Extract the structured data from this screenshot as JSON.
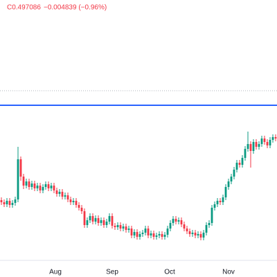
{
  "chart_data": {
    "type": "candlestick",
    "header": {
      "close": "C0.497086",
      "change": "−0.004839 (−0.96%)"
    },
    "up_color": "#089981",
    "down_color": "#f23645",
    "xlim": [
      -0.5,
      99.5
    ],
    "xticks": [
      {
        "value": 19.5,
        "label": "Aug"
      },
      {
        "value": 40,
        "label": "Sep"
      },
      {
        "value": 60.75,
        "label": "Oct"
      },
      {
        "value": 82,
        "label": "Nov"
      }
    ],
    "ylim": [
      0.322,
      0.697
    ],
    "grid": false,
    "lines": [
      {
        "value": 0.545,
        "color": "#2962ff",
        "style": "solid"
      },
      {
        "value": 0.566,
        "color": "#b2b5be",
        "style": "dotted"
      }
    ],
    "open": [
      0.408,
      0.405,
      0.402,
      0.407,
      0.401,
      0.404,
      0.409,
      0.467,
      0.442,
      0.429,
      0.435,
      0.427,
      0.432,
      0.425,
      0.429,
      0.422,
      0.427,
      0.431,
      0.425,
      0.429,
      0.422,
      0.417,
      0.42,
      0.413,
      0.415,
      0.409,
      0.405,
      0.407,
      0.401,
      0.397,
      0.392,
      0.372,
      0.379,
      0.385,
      0.377,
      0.382,
      0.375,
      0.379,
      0.372,
      0.377,
      0.385,
      0.371,
      0.369,
      0.372,
      0.367,
      0.37,
      0.365,
      0.367,
      0.357,
      0.362,
      0.355,
      0.359,
      0.361,
      0.367,
      0.357,
      0.36,
      0.355,
      0.357,
      0.359,
      0.355,
      0.358,
      0.367,
      0.375,
      0.381,
      0.377,
      0.379,
      0.373,
      0.367,
      0.363,
      0.359,
      0.361,
      0.357,
      0.359,
      0.354,
      0.361,
      0.372,
      0.375,
      0.397,
      0.402,
      0.407,
      0.405,
      0.412,
      0.427,
      0.435,
      0.442,
      0.452,
      0.462,
      0.459,
      0.469,
      0.482,
      0.489,
      0.479,
      0.492,
      0.485,
      0.489,
      0.497,
      0.492,
      0.487,
      0.495,
      0.499
    ],
    "high": [
      0.412,
      0.409,
      0.411,
      0.411,
      0.408,
      0.413,
      0.485,
      0.471,
      0.446,
      0.439,
      0.439,
      0.436,
      0.436,
      0.433,
      0.433,
      0.431,
      0.435,
      0.435,
      0.433,
      0.433,
      0.426,
      0.424,
      0.424,
      0.419,
      0.419,
      0.413,
      0.411,
      0.411,
      0.405,
      0.401,
      0.396,
      0.383,
      0.389,
      0.389,
      0.386,
      0.386,
      0.383,
      0.383,
      0.381,
      0.389,
      0.389,
      0.375,
      0.376,
      0.376,
      0.374,
      0.374,
      0.371,
      0.371,
      0.366,
      0.366,
      0.363,
      0.365,
      0.371,
      0.371,
      0.364,
      0.364,
      0.361,
      0.363,
      0.363,
      0.362,
      0.371,
      0.379,
      0.385,
      0.385,
      0.383,
      0.383,
      0.377,
      0.371,
      0.367,
      0.365,
      0.365,
      0.363,
      0.363,
      0.365,
      0.376,
      0.379,
      0.401,
      0.406,
      0.411,
      0.411,
      0.416,
      0.431,
      0.439,
      0.446,
      0.456,
      0.466,
      0.466,
      0.473,
      0.486,
      0.507,
      0.493,
      0.496,
      0.496,
      0.493,
      0.501,
      0.501,
      0.496,
      0.499,
      0.503,
      0.503
    ],
    "low": [
      0.401,
      0.398,
      0.398,
      0.397,
      0.397,
      0.4,
      0.405,
      0.436,
      0.424,
      0.425,
      0.423,
      0.423,
      0.421,
      0.421,
      0.418,
      0.418,
      0.423,
      0.421,
      0.421,
      0.418,
      0.413,
      0.413,
      0.409,
      0.409,
      0.405,
      0.401,
      0.401,
      0.397,
      0.393,
      0.388,
      0.368,
      0.368,
      0.375,
      0.373,
      0.373,
      0.371,
      0.371,
      0.368,
      0.368,
      0.373,
      0.367,
      0.365,
      0.365,
      0.363,
      0.363,
      0.361,
      0.361,
      0.353,
      0.353,
      0.351,
      0.351,
      0.355,
      0.357,
      0.353,
      0.353,
      0.351,
      0.351,
      0.353,
      0.351,
      0.351,
      0.354,
      0.363,
      0.371,
      0.373,
      0.373,
      0.369,
      0.363,
      0.359,
      0.355,
      0.355,
      0.353,
      0.353,
      0.35,
      0.35,
      0.357,
      0.368,
      0.371,
      0.393,
      0.398,
      0.401,
      0.401,
      0.408,
      0.423,
      0.431,
      0.438,
      0.448,
      0.455,
      0.455,
      0.465,
      0.478,
      0.455,
      0.475,
      0.481,
      0.481,
      0.485,
      0.488,
      0.483,
      0.483,
      0.491,
      0.493
    ],
    "close": [
      0.405,
      0.402,
      0.407,
      0.401,
      0.404,
      0.409,
      0.467,
      0.442,
      0.429,
      0.435,
      0.427,
      0.432,
      0.425,
      0.429,
      0.422,
      0.427,
      0.431,
      0.425,
      0.429,
      0.422,
      0.417,
      0.42,
      0.413,
      0.415,
      0.409,
      0.405,
      0.407,
      0.401,
      0.397,
      0.392,
      0.372,
      0.379,
      0.385,
      0.377,
      0.382,
      0.375,
      0.379,
      0.372,
      0.377,
      0.385,
      0.371,
      0.369,
      0.372,
      0.367,
      0.37,
      0.365,
      0.367,
      0.357,
      0.362,
      0.355,
      0.359,
      0.361,
      0.367,
      0.357,
      0.36,
      0.355,
      0.357,
      0.359,
      0.355,
      0.358,
      0.367,
      0.375,
      0.381,
      0.377,
      0.379,
      0.373,
      0.367,
      0.363,
      0.359,
      0.361,
      0.357,
      0.359,
      0.354,
      0.361,
      0.372,
      0.375,
      0.397,
      0.402,
      0.407,
      0.405,
      0.412,
      0.427,
      0.435,
      0.442,
      0.452,
      0.462,
      0.459,
      0.469,
      0.482,
      0.489,
      0.479,
      0.492,
      0.485,
      0.489,
      0.497,
      0.492,
      0.487,
      0.495,
      0.499,
      0.497
    ]
  }
}
